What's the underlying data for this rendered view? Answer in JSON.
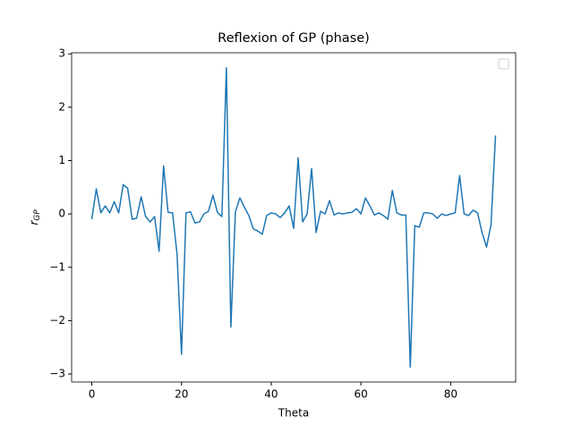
{
  "chart_data": {
    "type": "line",
    "title": "Reflexion of GP (phase)",
    "x_label": "Theta",
    "y_label": "r",
    "y_label_sub": "GP",
    "x": [
      0,
      1,
      2,
      3,
      4,
      5,
      6,
      7,
      8,
      9,
      10,
      11,
      12,
      13,
      14,
      15,
      16,
      17,
      18,
      19,
      20,
      21,
      22,
      23,
      24,
      25,
      26,
      27,
      28,
      29,
      30,
      31,
      32,
      33,
      34,
      35,
      36,
      37,
      38,
      39,
      40,
      41,
      42,
      43,
      44,
      45,
      46,
      47,
      48,
      49,
      50,
      51,
      52,
      53,
      54,
      55,
      56,
      57,
      58,
      59,
      60,
      61,
      62,
      63,
      64,
      65,
      66,
      67,
      68,
      69,
      70,
      71,
      72,
      73,
      74,
      75,
      76,
      77,
      78,
      79,
      80,
      81,
      82,
      83,
      84,
      85,
      86,
      87,
      88,
      89,
      90
    ],
    "series": [
      {
        "color": "#1f77b4",
        "values": [
          -0.1,
          0.47,
          0.02,
          0.15,
          0.02,
          0.23,
          0.02,
          0.55,
          0.48,
          -0.1,
          -0.08,
          0.32,
          -0.05,
          -0.15,
          -0.05,
          -0.7,
          0.9,
          0.03,
          0.02,
          -0.75,
          -2.63,
          0.02,
          0.04,
          -0.17,
          -0.15,
          0.0,
          0.05,
          0.35,
          0.03,
          -0.05,
          2.74,
          -2.12,
          0.03,
          0.3,
          0.13,
          -0.03,
          -0.28,
          -0.32,
          -0.38,
          -0.03,
          0.02,
          0.0,
          -0.07,
          0.02,
          0.15,
          -0.27,
          1.05,
          -0.15,
          0.0,
          0.85,
          -0.35,
          0.05,
          0.0,
          0.25,
          -0.02,
          0.02,
          0.0,
          0.02,
          0.03,
          0.1,
          0.0,
          0.3,
          0.15,
          -0.02,
          0.02,
          -0.03,
          -0.1,
          0.44,
          0.02,
          -0.02,
          -0.02,
          -2.87,
          -0.22,
          -0.25,
          0.02,
          0.02,
          0.0,
          -0.08,
          0.0,
          -0.03,
          0.0,
          0.02,
          0.72,
          0.0,
          -0.03,
          0.07,
          0.02,
          -0.35,
          -0.62,
          -0.2,
          1.47
        ]
      }
    ],
    "xlim": [
      -4.5,
      94.5
    ],
    "ylim": [
      -3.15,
      3.02
    ],
    "xticks": [
      0,
      20,
      40,
      60,
      80
    ],
    "yticks": [
      {
        "value": -3,
        "label": "−3"
      },
      {
        "value": -2,
        "label": "−2"
      },
      {
        "value": -1,
        "label": "−1"
      },
      0,
      1,
      2,
      3
    ],
    "legend": "upper right"
  }
}
